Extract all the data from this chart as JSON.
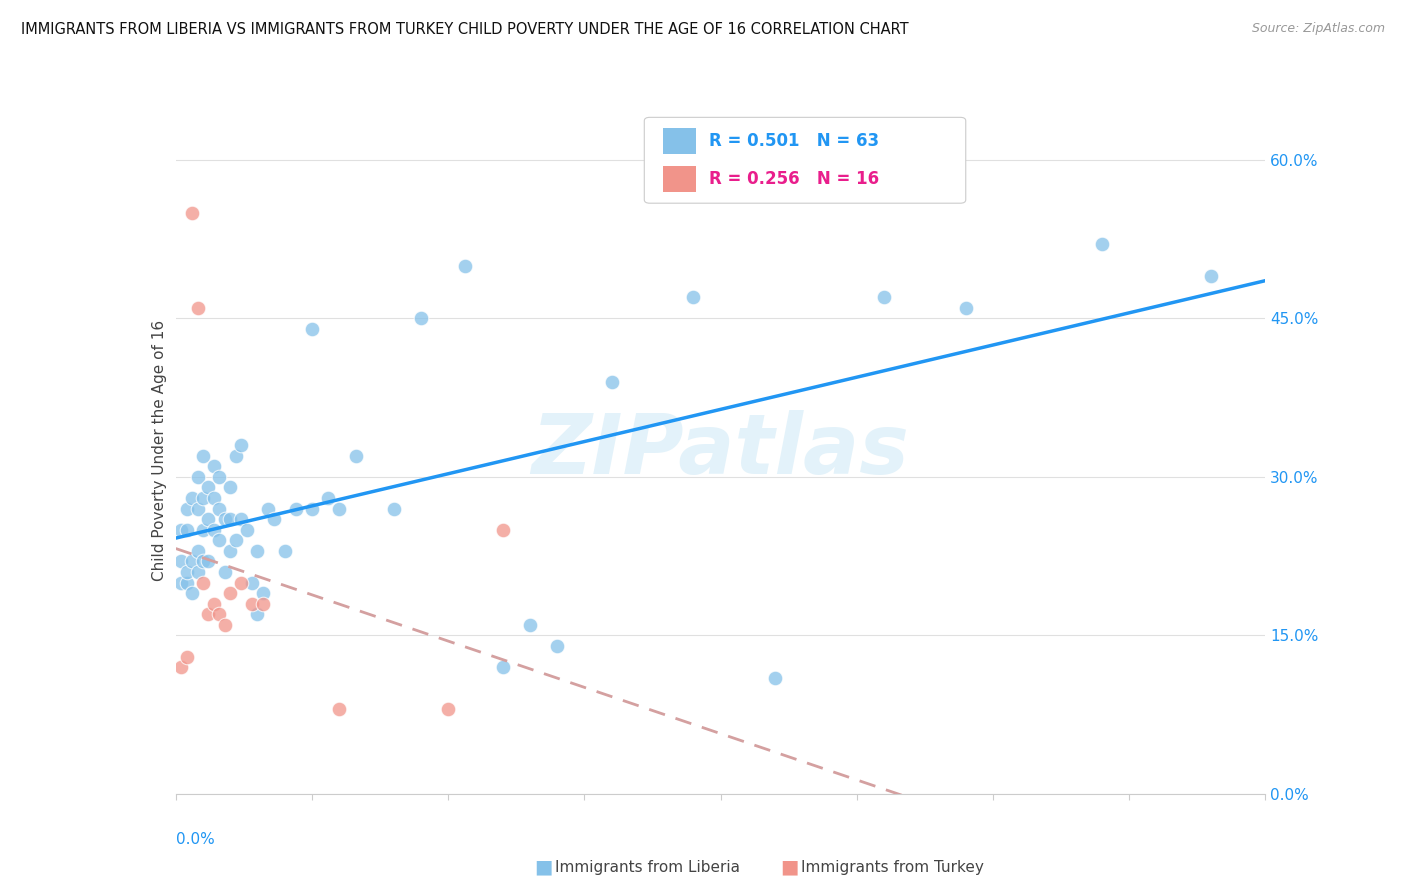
{
  "title": "IMMIGRANTS FROM LIBERIA VS IMMIGRANTS FROM TURKEY CHILD POVERTY UNDER THE AGE OF 16 CORRELATION CHART",
  "source": "Source: ZipAtlas.com",
  "ylabel": "Child Poverty Under the Age of 16",
  "watermark": "ZIPatlas",
  "liberia_color": "#85c1e9",
  "turkey_color": "#f1948a",
  "liberia_line_color": "#2196F3",
  "turkey_line_color": "#d4a0a0",
  "R_liberia": 0.501,
  "N_liberia": 63,
  "R_turkey": 0.256,
  "N_turkey": 16,
  "liberia_x": [
    0.001,
    0.001,
    0.001,
    0.002,
    0.002,
    0.002,
    0.002,
    0.003,
    0.003,
    0.003,
    0.004,
    0.004,
    0.004,
    0.004,
    0.005,
    0.005,
    0.005,
    0.005,
    0.006,
    0.006,
    0.006,
    0.007,
    0.007,
    0.007,
    0.008,
    0.008,
    0.008,
    0.009,
    0.009,
    0.01,
    0.01,
    0.01,
    0.011,
    0.011,
    0.012,
    0.012,
    0.013,
    0.014,
    0.015,
    0.015,
    0.016,
    0.017,
    0.018,
    0.02,
    0.022,
    0.025,
    0.025,
    0.028,
    0.03,
    0.033,
    0.04,
    0.045,
    0.053,
    0.06,
    0.065,
    0.07,
    0.08,
    0.095,
    0.11,
    0.13,
    0.145,
    0.17,
    0.19
  ],
  "liberia_y": [
    0.2,
    0.22,
    0.25,
    0.2,
    0.21,
    0.25,
    0.27,
    0.19,
    0.22,
    0.28,
    0.21,
    0.23,
    0.27,
    0.3,
    0.22,
    0.25,
    0.28,
    0.32,
    0.22,
    0.26,
    0.29,
    0.25,
    0.28,
    0.31,
    0.24,
    0.27,
    0.3,
    0.21,
    0.26,
    0.23,
    0.26,
    0.29,
    0.24,
    0.32,
    0.26,
    0.33,
    0.25,
    0.2,
    0.17,
    0.23,
    0.19,
    0.27,
    0.26,
    0.23,
    0.27,
    0.27,
    0.44,
    0.28,
    0.27,
    0.32,
    0.27,
    0.45,
    0.5,
    0.12,
    0.16,
    0.14,
    0.39,
    0.47,
    0.11,
    0.47,
    0.46,
    0.52,
    0.49
  ],
  "turkey_x": [
    0.001,
    0.002,
    0.003,
    0.004,
    0.005,
    0.006,
    0.007,
    0.008,
    0.009,
    0.01,
    0.012,
    0.014,
    0.016,
    0.03,
    0.05,
    0.06
  ],
  "turkey_y": [
    0.12,
    0.13,
    0.55,
    0.46,
    0.2,
    0.17,
    0.18,
    0.17,
    0.16,
    0.19,
    0.2,
    0.18,
    0.18,
    0.08,
    0.08,
    0.25
  ],
  "xmin": 0.0,
  "xmax": 0.2,
  "ymin": 0.0,
  "ymax": 0.65,
  "y_ticks": [
    0.0,
    0.15,
    0.3,
    0.45,
    0.6
  ],
  "y_tick_labels": [
    "0.0%",
    "15.0%",
    "30.0%",
    "45.0%",
    "60.0%"
  ],
  "background_color": "#ffffff"
}
